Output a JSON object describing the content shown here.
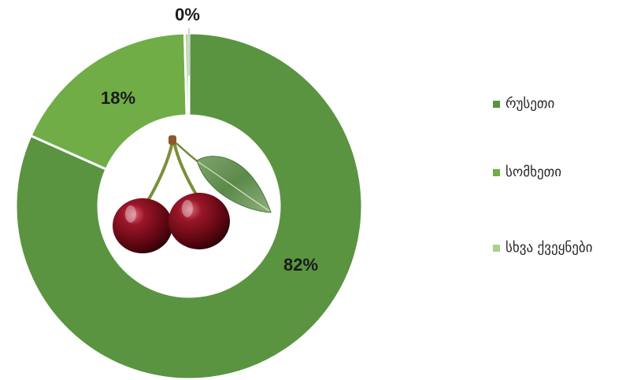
{
  "chart_data": {
    "type": "pie",
    "donut": true,
    "legend_position": "right",
    "center_image": "cherries",
    "series": [
      {
        "name": "რუსეთი",
        "value": 82,
        "label": "82%",
        "color": "#5a9440"
      },
      {
        "name": "სომხეთი",
        "value": 18,
        "label": "18%",
        "color": "#70ad47"
      },
      {
        "name": "სხვა ქვეყნები",
        "value": 0.4,
        "label": "0%",
        "color": "#a9d18e"
      }
    ]
  }
}
